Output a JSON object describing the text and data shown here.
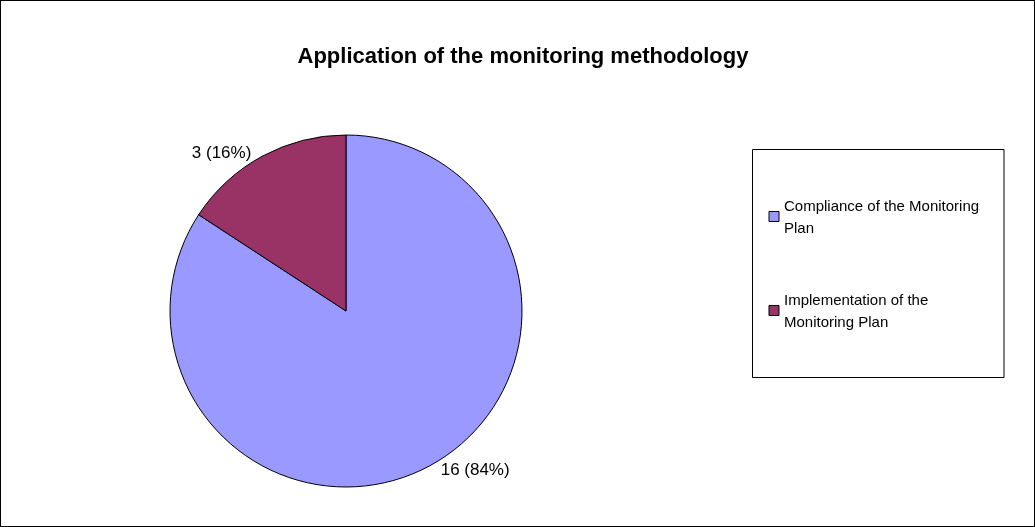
{
  "chart_data": {
    "type": "pie",
    "title": "Application of the monitoring methodology",
    "categories": [
      "Compliance of the Monitoring Plan",
      "Implementation of the Monitoring Plan"
    ],
    "values": [
      16,
      3
    ],
    "colors": [
      "#9999ff",
      "#993366"
    ],
    "value_labels": [
      "16 (84%)",
      "3 (16%)"
    ],
    "legend": "right"
  }
}
